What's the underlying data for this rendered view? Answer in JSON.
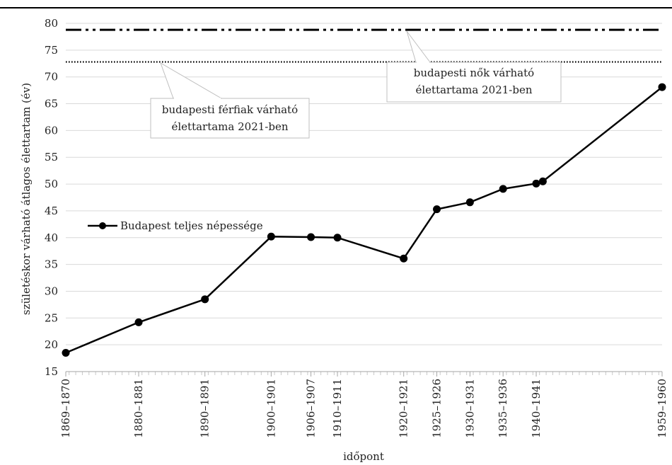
{
  "chart_data": {
    "type": "line",
    "xlabel": "időpont",
    "ylabel": "születéskor várható átlagos élettartam (év)",
    "ylim": [
      15,
      80
    ],
    "y_ticks": [
      15,
      20,
      25,
      30,
      35,
      40,
      45,
      50,
      55,
      60,
      65,
      70,
      75,
      80
    ],
    "grid": "horizontal",
    "x_range": [
      1869.5,
      1959.5
    ],
    "categories": [
      "1869–1870",
      "1880–1881",
      "1890–1891",
      "1900–1901",
      "1906–1907",
      "1910–1911",
      "1920–1921",
      "1925–1926",
      "1930–1931",
      "1935–1936",
      "1940–1941",
      "1941",
      "1959–1960"
    ],
    "x": [
      1869.5,
      1880.5,
      1890.5,
      1900.5,
      1906.5,
      1910.5,
      1920.5,
      1925.5,
      1930.5,
      1935.5,
      1940.5,
      1941.5,
      1959.5
    ],
    "x_labels": [
      "1869–1870",
      "1880–1881",
      "1890–1891",
      "1900–1901",
      "1906–1907",
      "1910–1911",
      "1920–1921",
      "1925–1926",
      "1930–1931",
      "1935–1936",
      "1940–1941",
      "1959–1960"
    ],
    "x_label_positions": [
      1869.5,
      1880.5,
      1890.5,
      1900.5,
      1906.5,
      1910.5,
      1920.5,
      1925.5,
      1930.5,
      1935.5,
      1940.5,
      1959.5
    ],
    "series": [
      {
        "name": "Budapest teljes népessége",
        "color": "#000000",
        "marker": "circle",
        "values": [
          18.5,
          24.2,
          28.5,
          40.2,
          40.1,
          40.0,
          36.1,
          45.3,
          46.6,
          49.1,
          50.1,
          50.5,
          68.1
        ]
      }
    ],
    "reference_lines": [
      {
        "value": 78.8,
        "style": "dash-dot-dot",
        "label": "budapesti nők várható élettartama 2021-ben"
      },
      {
        "value": 72.8,
        "style": "dotted",
        "label": "budapesti férfiak várható élettartama 2021-ben"
      }
    ],
    "legend": {
      "position": "left",
      "label": "Budapest teljes népessége"
    },
    "annotations": {
      "women_line1": "budapesti nők várható",
      "women_line2": "élettartama 2021-ben",
      "men_line1": "budapesti férfiak várható",
      "men_line2": "élettartama 2021-ben"
    },
    "colors": {
      "line": "#000000",
      "grid": "#d9d9d9",
      "callout_border": "#bfbfbf"
    }
  }
}
